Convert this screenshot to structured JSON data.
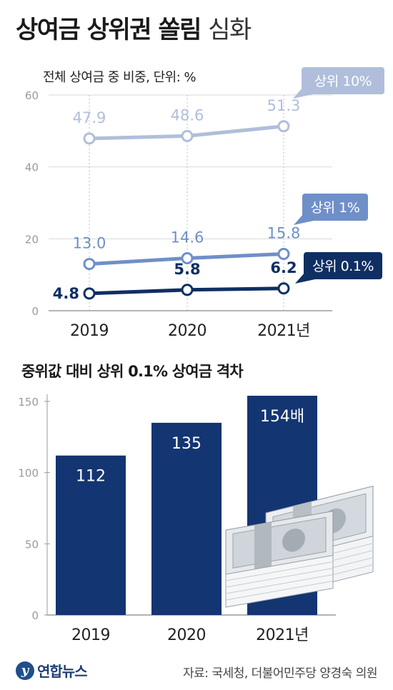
{
  "title": {
    "bold": "상여금 상위권 쏠림",
    "light": "심화"
  },
  "line_chart_subtitle": "전체 상여금 중 비중, 단위: %",
  "bar_chart_title": "중위값 대비 상위 0.1% 상여금 격차",
  "source": "자료: 국세청, 더불어민주당 양경숙 의원",
  "logo": {
    "mark": "y",
    "text": "연합뉴스"
  },
  "colors": {
    "light": "#b0bedb",
    "mid": "#6f8fc8",
    "dark": "#0f2f63",
    "bar": "#133572",
    "grid": "#d6d6d6",
    "axis": "#999999"
  },
  "chart_data": [
    {
      "type": "line",
      "title": "",
      "subtitle": "전체 상여금 중 비중, 단위: %",
      "categories": [
        "2019",
        "2020",
        "2021년"
      ],
      "ylim": [
        0,
        60
      ],
      "yticks": [
        "0",
        "20",
        "40",
        "60"
      ],
      "grid": true,
      "series": [
        {
          "name": "상위 10%",
          "values": [
            47.9,
            48.6,
            51.3
          ],
          "labels": [
            "47.9",
            "48.6",
            "51.3"
          ],
          "color": "#b0bedb"
        },
        {
          "name": "상위 1%",
          "values": [
            13.0,
            14.6,
            15.8
          ],
          "labels": [
            "13.0",
            "14.6",
            "15.8"
          ],
          "color": "#6f8fc8"
        },
        {
          "name": "상위 0.1%",
          "values": [
            4.8,
            5.8,
            6.2
          ],
          "labels": [
            "4.8",
            "5.8",
            "6.2"
          ],
          "color": "#0f2f63"
        }
      ]
    },
    {
      "type": "bar",
      "title": "중위값 대비 상위 0.1% 상여금 격차",
      "categories": [
        "2019",
        "2020",
        "2021년"
      ],
      "values": [
        112,
        135,
        154
      ],
      "labels": [
        "112",
        "135",
        "154배"
      ],
      "ylim": [
        0,
        150
      ],
      "yticks": [
        "0",
        "50",
        "100",
        "150"
      ],
      "grid": false
    }
  ]
}
